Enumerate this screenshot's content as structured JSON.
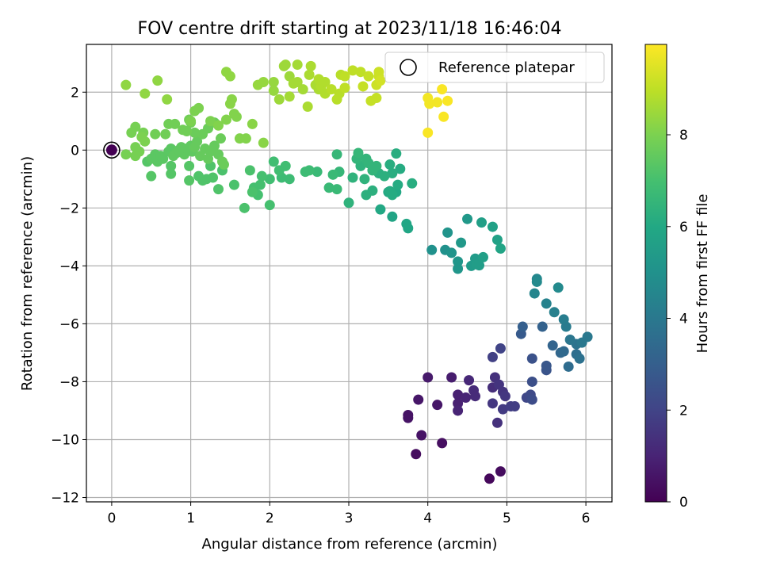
{
  "chart_data": {
    "type": "scatter",
    "title": "FOV centre drift starting at 2023/11/18 16:46:04",
    "xlabel": "Angular distance from reference (arcmin)",
    "ylabel": "Rotation from reference (arcmin)",
    "xlim": [
      -0.32,
      6.33
    ],
    "ylim": [
      -12.15,
      3.65
    ],
    "x_ticks": [
      0,
      1,
      2,
      3,
      4,
      5,
      6
    ],
    "x_tick_labels": [
      "0",
      "1",
      "2",
      "3",
      "4",
      "5",
      "6"
    ],
    "y_ticks": [
      -12,
      -10,
      -8,
      -6,
      -4,
      -2,
      0,
      2
    ],
    "y_tick_labels": [
      "−12",
      "−10",
      "−8",
      "−6",
      "−4",
      "−2",
      "0",
      "2"
    ],
    "grid": true,
    "legend": {
      "position": "top-right",
      "entries": [
        "Reference platepar"
      ]
    },
    "reference_point": {
      "x": 0,
      "y": 0
    },
    "colorbar": {
      "label": "Hours from first FF file",
      "range": [
        0,
        9.97
      ],
      "ticks": [
        0,
        2,
        4,
        6,
        8
      ],
      "tick_labels": [
        "0",
        "2",
        "4",
        "6",
        "8"
      ],
      "colormap": "viridis"
    },
    "points": [
      [
        4.78,
        -11.35,
        0.2
      ],
      [
        4.92,
        -11.1,
        0.3
      ],
      [
        3.85,
        -10.5,
        0.3
      ],
      [
        4.18,
        -10.12,
        0.4
      ],
      [
        3.92,
        -9.85,
        0.5
      ],
      [
        3.75,
        -9.15,
        0.5
      ],
      [
        3.75,
        -9.25,
        0.5
      ],
      [
        3.88,
        -8.62,
        0.6
      ],
      [
        4.12,
        -8.8,
        0.6
      ],
      [
        4.0,
        -7.85,
        0.7
      ],
      [
        4.3,
        -7.85,
        0.8
      ],
      [
        4.38,
        -8.45,
        0.9
      ],
      [
        4.38,
        -8.75,
        0.9
      ],
      [
        4.38,
        -9.0,
        1.0
      ],
      [
        4.48,
        -8.55,
        1.0
      ],
      [
        4.52,
        -7.95,
        1.1
      ],
      [
        4.58,
        -8.3,
        1.2
      ],
      [
        4.6,
        -8.5,
        1.2
      ],
      [
        4.82,
        -8.2,
        1.3
      ],
      [
        4.85,
        -7.85,
        1.4
      ],
      [
        4.88,
        -9.42,
        1.4
      ],
      [
        4.9,
        -8.1,
        1.5
      ],
      [
        4.95,
        -8.35,
        1.5
      ],
      [
        4.98,
        -8.5,
        1.6
      ],
      [
        4.82,
        -8.75,
        1.6
      ],
      [
        4.95,
        -8.95,
        1.7
      ],
      [
        5.05,
        -8.85,
        1.8
      ],
      [
        5.1,
        -8.85,
        1.8
      ],
      [
        4.82,
        -7.15,
        1.9
      ],
      [
        4.92,
        -6.85,
        2.0
      ],
      [
        5.25,
        -8.55,
        2.1
      ],
      [
        5.3,
        -8.45,
        2.2
      ],
      [
        5.32,
        -8.62,
        2.3
      ],
      [
        5.32,
        -8.0,
        2.4
      ],
      [
        5.32,
        -7.2,
        2.5
      ],
      [
        5.5,
        -7.6,
        2.6
      ],
      [
        5.5,
        -7.45,
        2.7
      ],
      [
        5.18,
        -6.35,
        2.8
      ],
      [
        5.2,
        -6.1,
        3.0
      ],
      [
        5.45,
        -6.1,
        3.1
      ],
      [
        5.58,
        -6.75,
        3.2
      ],
      [
        5.68,
        -7.0,
        3.3
      ],
      [
        5.72,
        -6.95,
        3.4
      ],
      [
        5.78,
        -7.48,
        3.5
      ],
      [
        5.88,
        -7.05,
        3.6
      ],
      [
        5.92,
        -7.2,
        3.7
      ],
      [
        5.88,
        -6.7,
        3.8
      ],
      [
        5.8,
        -6.55,
        3.9
      ],
      [
        5.95,
        -6.65,
        4.0
      ],
      [
        6.02,
        -6.45,
        4.0
      ],
      [
        5.75,
        -6.1,
        4.1
      ],
      [
        5.72,
        -5.85,
        4.2
      ],
      [
        5.6,
        -5.6,
        4.3
      ],
      [
        5.5,
        -5.3,
        4.4
      ],
      [
        5.35,
        -4.95,
        4.5
      ],
      [
        5.38,
        -4.45,
        4.6
      ],
      [
        5.38,
        -4.55,
        4.7
      ],
      [
        5.65,
        -4.75,
        4.7
      ],
      [
        4.05,
        -3.45,
        5.0
      ],
      [
        4.22,
        -3.45,
        5.0
      ],
      [
        4.25,
        -2.85,
        5.1
      ],
      [
        4.3,
        -3.55,
        5.1
      ],
      [
        4.38,
        -3.85,
        5.2
      ],
      [
        4.38,
        -4.1,
        5.2
      ],
      [
        4.42,
        -3.2,
        5.3
      ],
      [
        4.5,
        -2.38,
        5.3
      ],
      [
        4.55,
        -4.0,
        5.4
      ],
      [
        4.6,
        -3.75,
        5.4
      ],
      [
        4.62,
        -3.95,
        5.5
      ],
      [
        4.65,
        -3.98,
        5.5
      ],
      [
        4.7,
        -3.7,
        5.6
      ],
      [
        4.68,
        -2.5,
        5.6
      ],
      [
        4.82,
        -2.65,
        5.7
      ],
      [
        4.88,
        -3.1,
        5.7
      ],
      [
        4.92,
        -3.4,
        5.8
      ],
      [
        3.55,
        -2.3,
        5.8
      ],
      [
        3.73,
        -2.55,
        5.9
      ],
      [
        3.75,
        -2.7,
        5.9
      ],
      [
        3.4,
        -2.05,
        6.0
      ],
      [
        3.6,
        -1.45,
        6.0
      ],
      [
        3.5,
        -1.45,
        6.0
      ],
      [
        3.52,
        -1.42,
        6.1
      ],
      [
        3.55,
        -1.55,
        6.1
      ],
      [
        3.62,
        -1.2,
        6.1
      ],
      [
        3.65,
        -0.65,
        6.1
      ],
      [
        3.8,
        -1.15,
        6.2
      ],
      [
        3.55,
        -0.8,
        6.2
      ],
      [
        3.6,
        -0.12,
        6.2
      ],
      [
        3.52,
        -0.5,
        6.2
      ],
      [
        3.38,
        -0.8,
        6.3
      ],
      [
        3.45,
        -0.9,
        6.3
      ],
      [
        3.3,
        -1.4,
        6.3
      ],
      [
        3.22,
        -1.55,
        6.3
      ],
      [
        3.2,
        -1.0,
        6.4
      ],
      [
        3.15,
        -0.55,
        6.4
      ],
      [
        3.05,
        -0.95,
        6.4
      ],
      [
        3.0,
        -1.82,
        6.4
      ],
      [
        3.1,
        -0.3,
        6.5
      ],
      [
        3.22,
        -0.3,
        6.5
      ],
      [
        3.25,
        -0.45,
        6.5
      ],
      [
        3.3,
        -0.7,
        6.5
      ],
      [
        3.35,
        -0.55,
        6.5
      ],
      [
        3.12,
        -0.1,
        6.6
      ],
      [
        2.85,
        -0.15,
        6.6
      ],
      [
        2.88,
        -0.75,
        6.6
      ],
      [
        2.85,
        -1.35,
        6.7
      ],
      [
        2.75,
        -1.3,
        6.7
      ],
      [
        2.8,
        -0.85,
        6.7
      ],
      [
        2.6,
        -0.75,
        6.7
      ],
      [
        2.5,
        -0.7,
        6.8
      ],
      [
        2.45,
        -0.75,
        6.8
      ],
      [
        2.25,
        -1.0,
        6.8
      ],
      [
        2.15,
        -0.95,
        6.8
      ],
      [
        2.2,
        -0.55,
        6.9
      ],
      [
        2.12,
        -0.7,
        6.9
      ],
      [
        2.05,
        -0.4,
        6.9
      ],
      [
        2.0,
        -1.0,
        6.9
      ],
      [
        2.0,
        -1.9,
        7.0
      ],
      [
        1.9,
        -0.9,
        7.0
      ],
      [
        1.88,
        -1.2,
        7.0
      ],
      [
        1.85,
        -1.55,
        7.0
      ],
      [
        1.8,
        -1.3,
        7.0
      ],
      [
        1.78,
        -1.45,
        7.1
      ],
      [
        1.75,
        -0.7,
        7.1
      ],
      [
        1.68,
        -2.0,
        7.1
      ],
      [
        1.55,
        -1.2,
        7.1
      ],
      [
        1.4,
        -0.7,
        7.1
      ],
      [
        1.35,
        -1.35,
        7.2
      ],
      [
        1.28,
        -0.95,
        7.2
      ],
      [
        1.25,
        -0.55,
        7.2
      ],
      [
        1.2,
        -1.0,
        7.2
      ],
      [
        1.15,
        -1.05,
        7.2
      ],
      [
        1.1,
        -0.9,
        7.2
      ],
      [
        0.98,
        -1.05,
        7.3
      ],
      [
        0.98,
        -0.55,
        7.3
      ],
      [
        0.75,
        -0.82,
        7.3
      ],
      [
        0.75,
        -0.55,
        7.3
      ],
      [
        0.5,
        -0.9,
        7.3
      ],
      [
        0.45,
        -0.4,
        7.3
      ],
      [
        0.5,
        -0.3,
        7.4
      ],
      [
        0.55,
        -0.15,
        7.4
      ],
      [
        0.58,
        -0.4,
        7.4
      ],
      [
        0.62,
        -0.2,
        7.4
      ],
      [
        0.65,
        -0.3,
        7.4
      ],
      [
        0.72,
        -0.05,
        7.4
      ],
      [
        0.75,
        0.05,
        7.4
      ],
      [
        0.78,
        -0.2,
        7.5
      ],
      [
        0.82,
        -0.1,
        7.5
      ],
      [
        0.85,
        0.0,
        7.5
      ],
      [
        0.88,
        0.1,
        7.5
      ],
      [
        0.92,
        -0.15,
        7.5
      ],
      [
        0.95,
        0.05,
        7.5
      ],
      [
        1.0,
        0.15,
        7.5
      ],
      [
        1.02,
        -0.05,
        7.5
      ],
      [
        1.05,
        0.1,
        7.6
      ],
      [
        1.08,
        0.3,
        7.6
      ],
      [
        1.12,
        -0.2,
        7.6
      ],
      [
        1.18,
        0.05,
        7.6
      ],
      [
        1.22,
        -0.3,
        7.6
      ],
      [
        1.25,
        -0.05,
        7.6
      ],
      [
        1.3,
        0.15,
        7.6
      ],
      [
        1.35,
        -0.15,
        7.6
      ],
      [
        1.38,
        0.4,
        7.7
      ],
      [
        1.4,
        -0.4,
        7.7
      ],
      [
        1.42,
        -0.5,
        7.7
      ],
      [
        1.3,
        0.95,
        7.7
      ],
      [
        1.22,
        0.75,
        7.7
      ],
      [
        1.15,
        0.55,
        7.7
      ],
      [
        1.05,
        0.6,
        7.7
      ],
      [
        1.0,
        0.95,
        7.8
      ],
      [
        0.98,
        1.05,
        7.8
      ],
      [
        0.95,
        0.65,
        7.8
      ],
      [
        0.9,
        0.7,
        7.8
      ],
      [
        0.8,
        0.9,
        7.8
      ],
      [
        0.72,
        0.9,
        7.8
      ],
      [
        0.68,
        0.55,
        7.8
      ],
      [
        0.55,
        0.55,
        7.8
      ],
      [
        0.4,
        0.6,
        7.9
      ],
      [
        0.3,
        0.8,
        7.9
      ],
      [
        0.25,
        0.6,
        7.9
      ],
      [
        0.3,
        0.1,
        7.9
      ],
      [
        0.35,
        -0.05,
        7.9
      ],
      [
        0.3,
        -0.2,
        7.9
      ],
      [
        0.18,
        -0.15,
        7.9
      ],
      [
        0.42,
        0.3,
        8.0
      ],
      [
        0.38,
        0.45,
        8.0
      ],
      [
        1.05,
        1.35,
        8.0
      ],
      [
        1.1,
        1.45,
        8.0
      ],
      [
        1.0,
        1.0,
        8.0
      ],
      [
        1.25,
        1.0,
        8.0
      ],
      [
        1.35,
        0.85,
        8.1
      ],
      [
        1.45,
        1.05,
        8.1
      ],
      [
        1.55,
        1.25,
        8.1
      ],
      [
        1.58,
        1.15,
        8.1
      ],
      [
        1.62,
        0.4,
        8.1
      ],
      [
        1.7,
        0.4,
        8.1
      ],
      [
        1.78,
        0.9,
        8.2
      ],
      [
        1.92,
        0.25,
        8.2
      ],
      [
        1.5,
        1.6,
        8.2
      ],
      [
        1.52,
        1.75,
        8.2
      ],
      [
        1.45,
        2.7,
        8.3
      ],
      [
        1.5,
        2.55,
        8.3
      ],
      [
        0.7,
        1.75,
        8.3
      ],
      [
        0.58,
        2.4,
        8.3
      ],
      [
        0.42,
        1.95,
        8.3
      ],
      [
        0.18,
        2.25,
        8.3
      ],
      [
        1.85,
        2.25,
        8.4
      ],
      [
        1.92,
        2.35,
        8.4
      ],
      [
        2.05,
        2.35,
        8.4
      ],
      [
        2.05,
        2.05,
        8.4
      ],
      [
        2.12,
        1.75,
        8.5
      ],
      [
        2.18,
        2.9,
        8.5
      ],
      [
        2.2,
        2.95,
        8.5
      ],
      [
        2.25,
        2.55,
        8.5
      ],
      [
        2.25,
        1.85,
        8.6
      ],
      [
        2.3,
        2.3,
        8.6
      ],
      [
        2.35,
        2.35,
        8.6
      ],
      [
        2.35,
        2.95,
        8.6
      ],
      [
        2.42,
        2.1,
        8.6
      ],
      [
        2.48,
        1.5,
        8.7
      ],
      [
        2.5,
        2.6,
        8.7
      ],
      [
        2.52,
        2.9,
        8.7
      ],
      [
        2.58,
        2.25,
        8.7
      ],
      [
        2.62,
        2.1,
        8.7
      ],
      [
        2.65,
        2.2,
        8.8
      ],
      [
        2.62,
        2.45,
        8.8
      ],
      [
        2.7,
        2.35,
        8.8
      ],
      [
        2.7,
        1.95,
        8.8
      ],
      [
        2.78,
        2.1,
        8.9
      ],
      [
        2.85,
        1.75,
        8.9
      ],
      [
        2.88,
        1.95,
        8.9
      ],
      [
        2.9,
        2.6,
        8.9
      ],
      [
        2.95,
        2.15,
        9.0
      ],
      [
        2.95,
        2.55,
        9.0
      ],
      [
        3.05,
        2.75,
        9.0
      ],
      [
        3.15,
        2.7,
        9.0
      ],
      [
        3.18,
        2.2,
        9.1
      ],
      [
        3.25,
        2.55,
        9.1
      ],
      [
        3.28,
        1.7,
        9.1
      ],
      [
        3.35,
        1.8,
        9.1
      ],
      [
        3.35,
        2.25,
        9.2
      ],
      [
        3.38,
        2.55,
        9.2
      ],
      [
        3.38,
        2.7,
        9.2
      ],
      [
        3.4,
        2.4,
        9.3
      ],
      [
        4.0,
        1.8,
        9.8
      ],
      [
        4.02,
        1.6,
        9.8
      ],
      [
        4.12,
        1.65,
        9.8
      ],
      [
        4.18,
        2.1,
        9.9
      ],
      [
        4.2,
        1.15,
        9.9
      ],
      [
        4.25,
        1.7,
        9.9
      ],
      [
        4.0,
        0.6,
        9.9
      ]
    ]
  }
}
